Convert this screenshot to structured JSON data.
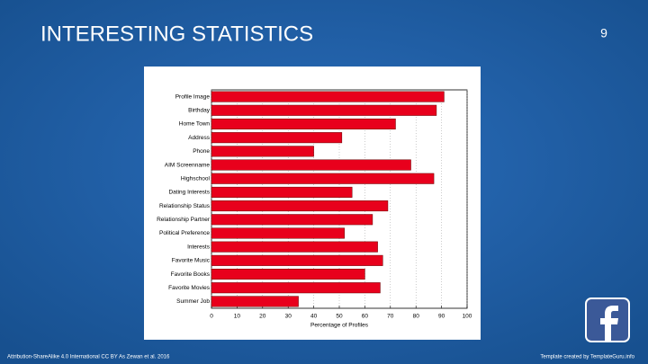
{
  "slide": {
    "title": "INTERESTING STATISTICS",
    "page_number": "9",
    "footer_left": "Attribution-ShareAlike 4.0 International CC BY As Zewan et al. 2016",
    "footer_right": "Template created by TemplateGuru.info"
  },
  "chart_data": {
    "type": "hbar",
    "categories": [
      "Profile Image",
      "Birthday",
      "Home Town",
      "Address",
      "Phone",
      "AIM Screenname",
      "Highschool",
      "Dating Interests",
      "Relationship Status",
      "Relationship Partner",
      "Political Preference",
      "Interests",
      "Favorite Music",
      "Favorite Books",
      "Favorite Movies",
      "Summer Job"
    ],
    "values": [
      91,
      88,
      72,
      51,
      40,
      78,
      87,
      55,
      69,
      63,
      52,
      65,
      67,
      60,
      66,
      34
    ],
    "color": "#e8001c",
    "x_label": "Percentage of Profiles",
    "xlim": [
      0,
      100
    ],
    "xticks": [
      0,
      10,
      20,
      30,
      40,
      50,
      60,
      70,
      80,
      90,
      100
    ],
    "grid": true
  }
}
